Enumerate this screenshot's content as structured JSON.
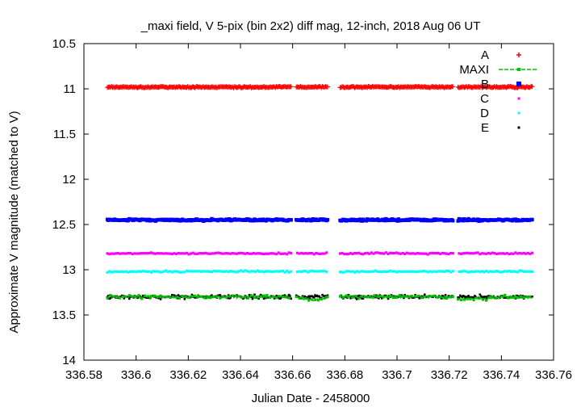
{
  "chart_data": {
    "type": "scatter",
    "title": "_maxi field, V 5-pix (bin 2x2) diff mag, 12-inch, 2018 Aug 06 UT",
    "xlabel": "Julian Date - 2458000",
    "ylabel": "Approximate V magnitude (matched to V)",
    "xlim": [
      336.58,
      336.76
    ],
    "ylim": [
      10.5,
      14
    ],
    "y_inverted": true,
    "x_ticks": [
      "336.58",
      "336.6",
      "336.62",
      "336.64",
      "336.66",
      "336.68",
      "336.7",
      "336.72",
      "336.74",
      "336.76"
    ],
    "y_ticks": [
      "10.5",
      "11",
      "11.5",
      "12",
      "12.5",
      "13",
      "13.5",
      "14"
    ],
    "legend_position": "top-right",
    "x_range_observed": [
      336.589,
      336.752
    ],
    "gaps": [
      [
        336.6598,
        336.6612
      ],
      [
        336.6738,
        336.6782
      ],
      [
        336.7218,
        336.7232
      ]
    ],
    "series": [
      {
        "name": "A",
        "style": "plus",
        "color": "#ff0000",
        "mean": 10.98,
        "scatter": 0.012
      },
      {
        "name": "MAXI",
        "style": "line-points",
        "color": "#00c000",
        "mean": 13.3,
        "scatter": 0.025
      },
      {
        "name": "B",
        "style": "square",
        "color": "#0000ff",
        "mean": 12.45,
        "scatter": 0.015
      },
      {
        "name": "C",
        "style": "dot",
        "color": "#ff00ff",
        "mean": 12.82,
        "scatter": 0.012
      },
      {
        "name": "D",
        "style": "dot",
        "color": "#00ffff",
        "mean": 13.02,
        "scatter": 0.012
      },
      {
        "name": "E",
        "style": "dot",
        "color": "#000000",
        "mean": 13.3,
        "scatter": 0.03
      }
    ]
  }
}
